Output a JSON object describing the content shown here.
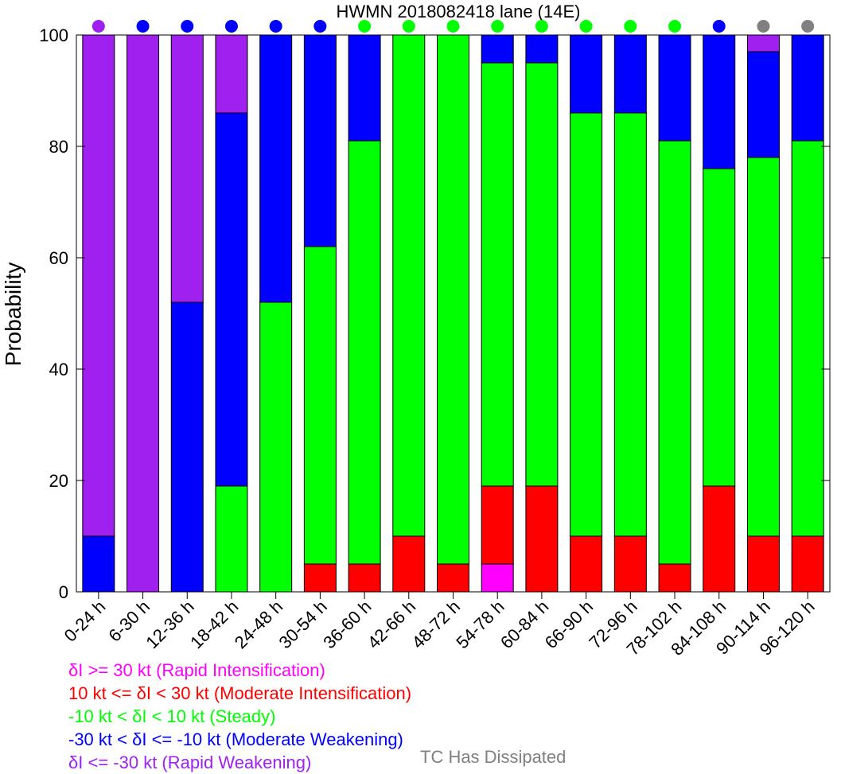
{
  "chart_data": {
    "type": "bar",
    "stacked": true,
    "title": "HWMN 2018082418 lane (14E)",
    "xlabel": "",
    "ylabel": "Probability",
    "ylim": [
      0,
      100
    ],
    "yticks": [
      "0",
      "20",
      "40",
      "60",
      "80",
      "100"
    ],
    "grid": false,
    "categories": [
      "0-24 h",
      "6-30 h",
      "12-36 h",
      "18-42 h",
      "24-48 h",
      "30-54 h",
      "36-60 h",
      "42-66 h",
      "48-72 h",
      "54-78 h",
      "60-84 h",
      "66-90 h",
      "72-96 h",
      "78-102 h",
      "84-108 h",
      "90-114 h",
      "96-120 h"
    ],
    "series": [
      {
        "name": "δI >= 30 kt (Rapid Intensification)",
        "color": "#ff00ff",
        "values": [
          0,
          0,
          0,
          0,
          0,
          0,
          0,
          0,
          0,
          5,
          0,
          0,
          0,
          0,
          0,
          0,
          0
        ]
      },
      {
        "name": "10 kt <= δI < 30 kt (Moderate Intensification)",
        "color": "#ff0000",
        "values": [
          0,
          0,
          0,
          0,
          0,
          5,
          5,
          10,
          5,
          14,
          19,
          10,
          10,
          5,
          19,
          10,
          10
        ]
      },
      {
        "name": "-10 kt < δI < 10 kt (Steady)",
        "color": "#00ff00",
        "values": [
          0,
          0,
          0,
          19,
          52,
          57,
          76,
          90,
          95,
          76,
          76,
          76,
          76,
          76,
          57,
          68,
          71
        ]
      },
      {
        "name": "-30 kt < δI <= -10 kt (Moderate Weakening)",
        "color": "#0000ff",
        "values": [
          10,
          0,
          52,
          67,
          48,
          38,
          19,
          0,
          0,
          5,
          5,
          14,
          14,
          19,
          24,
          19,
          19
        ]
      },
      {
        "name": "δI <= -30 kt (Rapid Weakening)",
        "color": "#a020f0",
        "values": [
          90,
          100,
          48,
          14,
          0,
          0,
          0,
          0,
          0,
          0,
          0,
          0,
          0,
          0,
          0,
          3,
          0
        ]
      }
    ],
    "dot_colors": [
      "#a020f0",
      "#0000ff",
      "#0000ff",
      "#0000ff",
      "#0000ff",
      "#0000ff",
      "#00ff00",
      "#00ff00",
      "#00ff00",
      "#00ff00",
      "#00ff00",
      "#00ff00",
      "#00ff00",
      "#00ff00",
      "#0000ff",
      "#808080",
      "#808080"
    ],
    "dissipated_label": "TC Has Dissipated",
    "dissipated_color": "#808080"
  }
}
